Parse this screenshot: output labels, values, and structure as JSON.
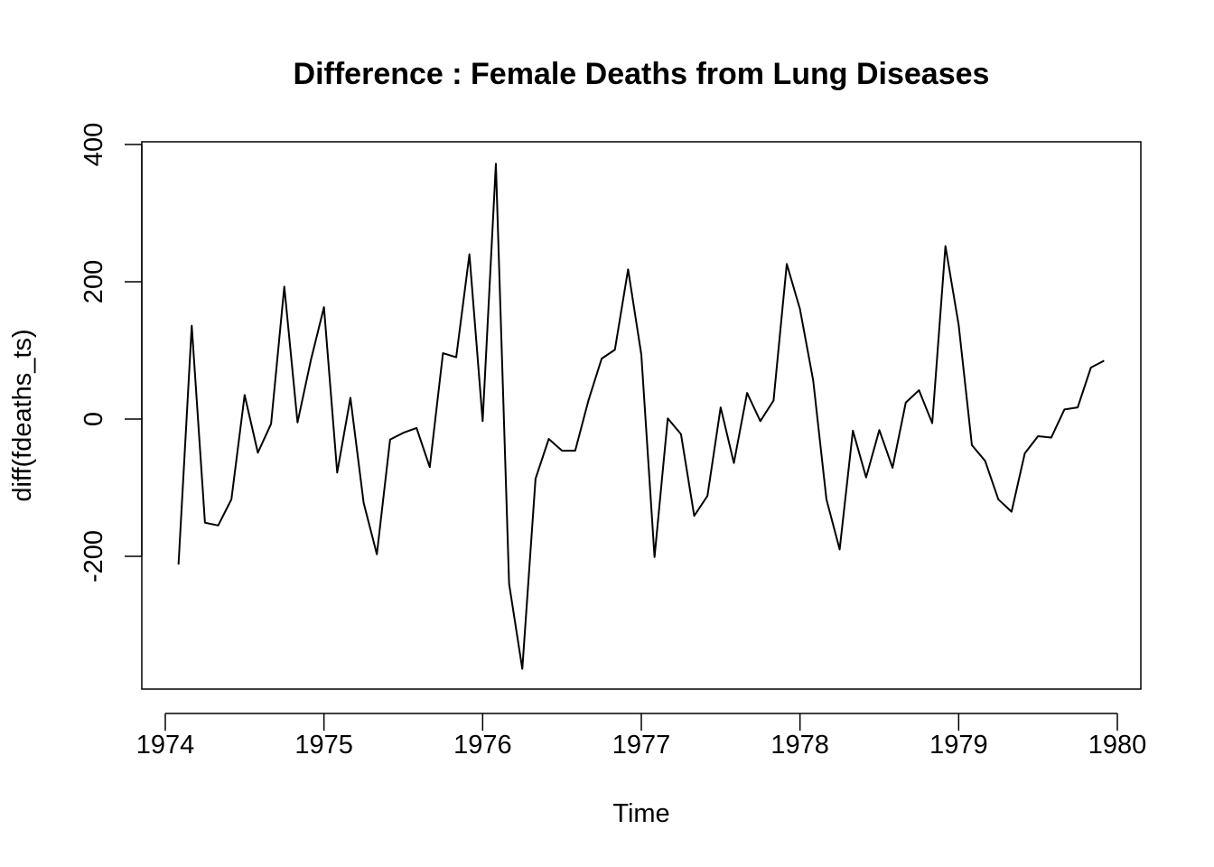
{
  "chart_data": {
    "type": "line",
    "title": "Difference : Female Deaths from Lung Diseases",
    "xlabel": "Time",
    "ylabel": "diff(fdeaths_ts)",
    "xlim": [
      1974,
      1980
    ],
    "ylim": [
      -400,
      400
    ],
    "x_ticks": [
      1974,
      1975,
      1976,
      1977,
      1978,
      1979,
      1980
    ],
    "y_ticks": [
      -200,
      0,
      200,
      400
    ],
    "x_tick_labels": [
      "1974",
      "1975",
      "1976",
      "1977",
      "1978",
      "1979",
      "1980"
    ],
    "y_tick_labels": [
      "-200",
      "0",
      "200",
      "400"
    ],
    "frequency": 12,
    "start": 1974.0833,
    "series": [
      {
        "values": [
          -212,
          136,
          -151,
          -155,
          -117,
          35,
          -49,
          -7,
          193,
          -5,
          85,
          163,
          -78,
          31,
          -122,
          -197,
          -30,
          -20,
          -13,
          -70,
          96,
          90,
          240,
          -3,
          372,
          -240,
          -364,
          -87,
          -29,
          -46,
          -46,
          27,
          88,
          101,
          218,
          94,
          -201,
          1,
          -22,
          -141,
          -112,
          17,
          -64,
          38,
          -3,
          27,
          226,
          160,
          56,
          -117,
          -190,
          -17,
          -85,
          -16,
          -71,
          24,
          42,
          -6,
          252,
          137,
          -38,
          -61,
          -117,
          -135,
          -50,
          -25,
          -27,
          14,
          17,
          75,
          85
        ]
      }
    ]
  }
}
